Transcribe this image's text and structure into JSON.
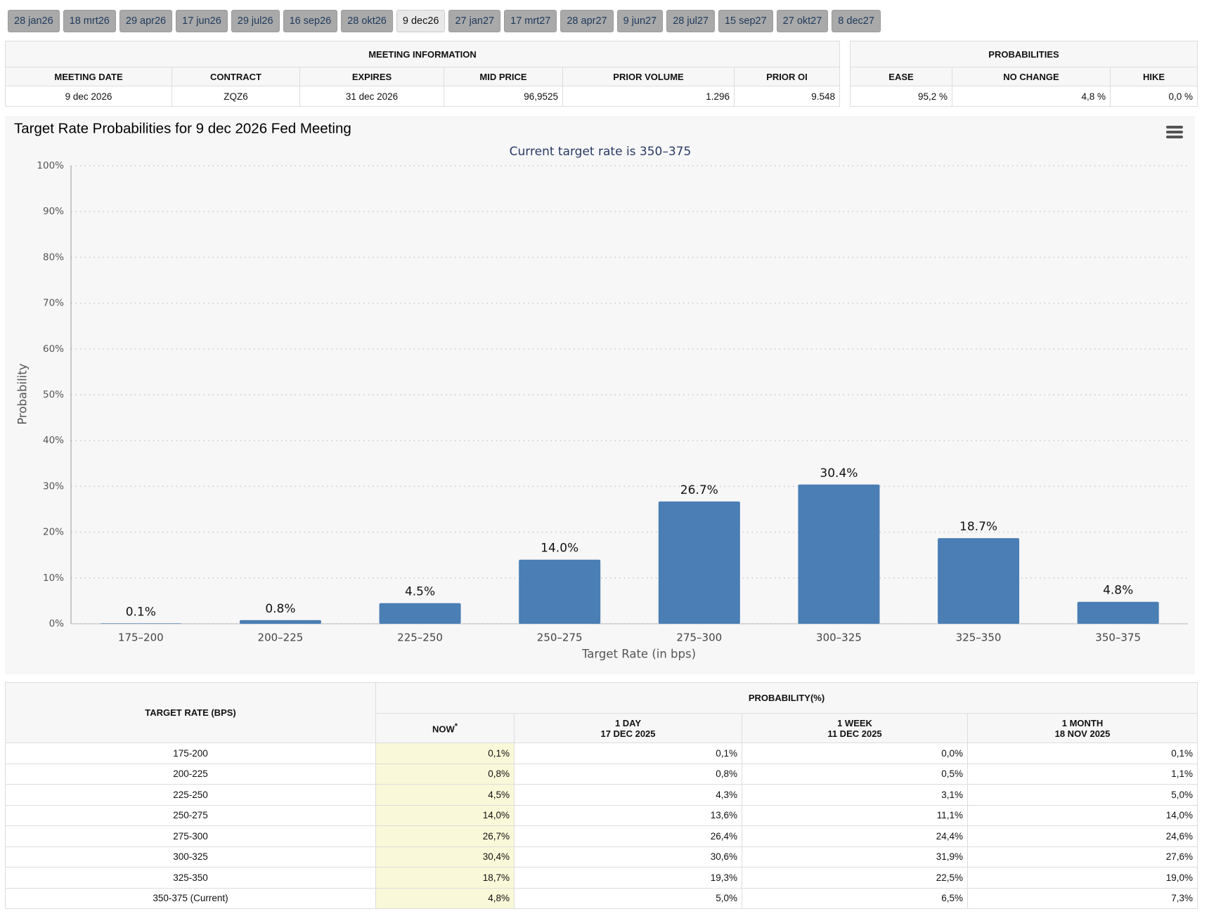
{
  "tabs": [
    "28 jan26",
    "18 mrt26",
    "29 apr26",
    "17 jun26",
    "29 jul26",
    "16 sep26",
    "28 okt26",
    "9 dec26",
    "27 jan27",
    "17 mrt27",
    "28 apr27",
    "9 jun27",
    "28 jul27",
    "15 sep27",
    "27 okt27",
    "8 dec27"
  ],
  "meeting_info": {
    "title": "MEETING INFORMATION",
    "headers": [
      "MEETING DATE",
      "CONTRACT",
      "EXPIRES",
      "MID PRICE",
      "PRIOR VOLUME",
      "PRIOR OI"
    ],
    "row": [
      "9 dec 2026",
      "ZQZ6",
      "31 dec 2026",
      "96,9525",
      "1.296",
      "9.548"
    ]
  },
  "probabilities": {
    "title": "PROBABILITIES",
    "headers": [
      "EASE",
      "NO CHANGE",
      "HIKE"
    ],
    "row": [
      "95,2 %",
      "4,8 %",
      "0,0 %"
    ]
  },
  "chart_data": {
    "type": "bar",
    "title": "Target Rate Probabilities for 9 dec 2026 Fed Meeting",
    "subtitle": "Current target rate is 350–375",
    "x_label": "Target Rate (in bps)",
    "y_label": "Probability",
    "categories": [
      "175–200",
      "200–225",
      "225–250",
      "250–275",
      "275–300",
      "300–325",
      "325–350",
      "350–375"
    ],
    "values": [
      0.1,
      0.8,
      4.5,
      14.0,
      26.7,
      30.4,
      18.7,
      4.8
    ],
    "value_labels": [
      "0.1%",
      "0.8%",
      "4.5%",
      "14.0%",
      "26.7%",
      "30.4%",
      "18.7%",
      "4.8%"
    ],
    "color": "#4a7eb4",
    "ylim": [
      0,
      100
    ],
    "yticks": [
      {
        "value": 0,
        "label": "0%"
      },
      {
        "value": 10,
        "label": "10%"
      },
      {
        "value": 20,
        "label": "20%"
      },
      {
        "value": 30,
        "label": "30%"
      },
      {
        "value": 40,
        "label": "40%"
      },
      {
        "value": 50,
        "label": "50%"
      },
      {
        "value": 60,
        "label": "60%"
      },
      {
        "value": 70,
        "label": "70%"
      },
      {
        "value": 80,
        "label": "80%"
      },
      {
        "value": 90,
        "label": "90%"
      },
      {
        "value": 100,
        "label": "100%"
      }
    ],
    "grid": true
  },
  "probability_table": {
    "rate_header": "TARGET RATE (BPS)",
    "group_header": "PROBABILITY(%)",
    "columns": [
      {
        "label": "NOW",
        "note": "*"
      },
      {
        "label": "1 DAY",
        "date": "17 DEC 2025"
      },
      {
        "label": "1 WEEK",
        "date": "11 DEC 2025"
      },
      {
        "label": "1 MONTH",
        "date": "18 NOV 2025"
      }
    ],
    "rows": [
      [
        "175-200",
        "0,1%",
        "0,1%",
        "0,0%",
        "0,1%"
      ],
      [
        "200-225",
        "0,8%",
        "0,8%",
        "0,5%",
        "1,1%"
      ],
      [
        "225-250",
        "4,5%",
        "4,3%",
        "3,1%",
        "5,0%"
      ],
      [
        "250-275",
        "14,0%",
        "13,6%",
        "11,1%",
        "14,0%"
      ],
      [
        "275-300",
        "26,7%",
        "26,4%",
        "24,4%",
        "24,6%"
      ],
      [
        "300-325",
        "30,4%",
        "30,6%",
        "31,9%",
        "27,6%"
      ],
      [
        "325-350",
        "18,7%",
        "19,3%",
        "22,5%",
        "19,0%"
      ],
      [
        "350-375 (Current)",
        "4,8%",
        "5,0%",
        "6,5%",
        "7,3%"
      ]
    ]
  }
}
